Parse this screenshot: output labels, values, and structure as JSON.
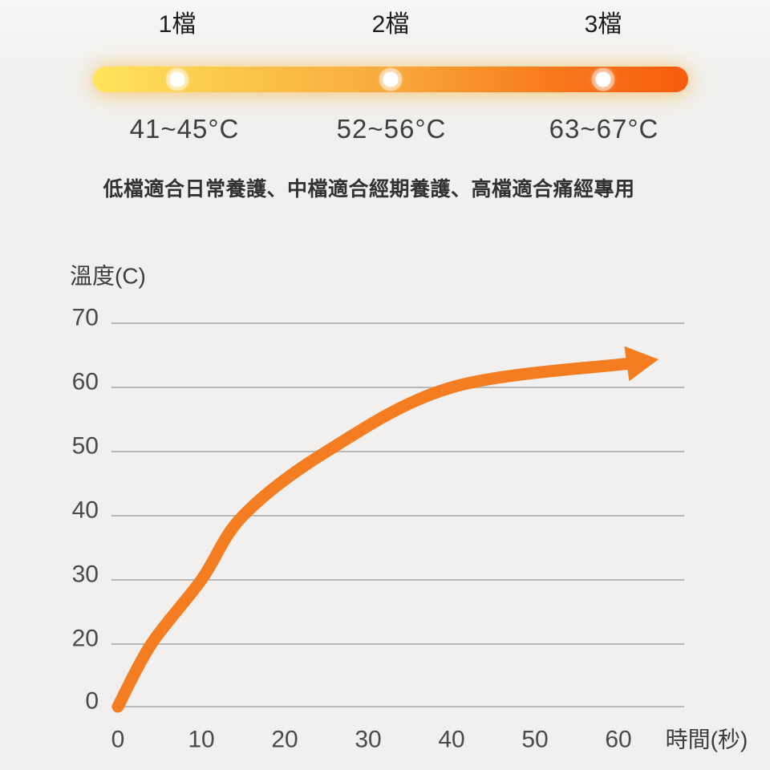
{
  "page_background": "#f1f0ee",
  "levels_bar": {
    "items": [
      {
        "label": "1檔",
        "range": "41~45°C"
      },
      {
        "label": "2檔",
        "range": "52~56°C"
      },
      {
        "label": "3檔",
        "range": "63~67°C"
      }
    ],
    "gradient_colors": [
      "#ffe45c",
      "#f8a93c",
      "#f85c0e"
    ],
    "dot_color": "#ffffff",
    "description": "低檔適合日常養護、中檔適合經期養護、高檔適合痛經專用"
  },
  "chart_data": {
    "type": "line",
    "title": "",
    "ylabel": "溫度(C)",
    "xlabel": "時間(秒)",
    "x_ticks": [
      0,
      10,
      20,
      30,
      40,
      50,
      60
    ],
    "y_ticks": [
      70,
      60,
      50,
      40,
      30,
      20,
      0
    ],
    "xlim": [
      0,
      68
    ],
    "ylim": [
      0,
      70
    ],
    "grid": "horizontal-only",
    "legend": "none",
    "series": [
      {
        "name": "temperature-rise",
        "points": [
          [
            0,
            0
          ],
          [
            4,
            20
          ],
          [
            10,
            30
          ],
          [
            15,
            40
          ],
          [
            25,
            50
          ],
          [
            40,
            60
          ],
          [
            61,
            63.7
          ]
        ],
        "arrow": true,
        "color": "#f47d21"
      }
    ],
    "grid_color": "#b8b8b8",
    "tick_color": "#4a4a4a",
    "axis_title_color": "#3c3c3c"
  }
}
